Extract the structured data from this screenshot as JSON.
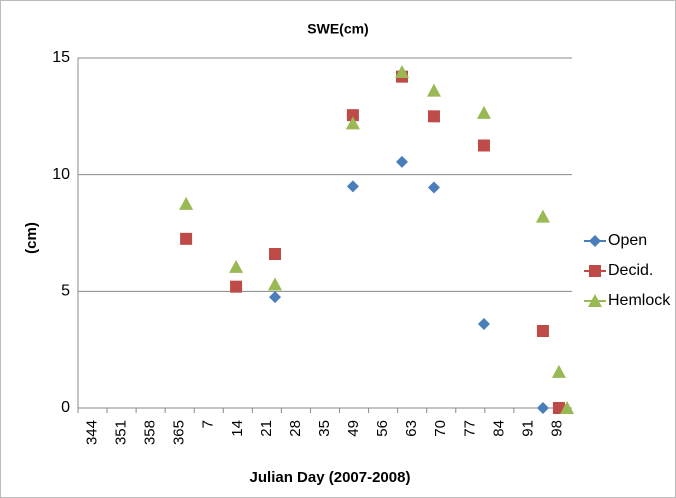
{
  "chart_data": {
    "type": "scatter",
    "title": "SWE(cm)",
    "x_label": "Julian Day (2007-2008)",
    "y_label": "(cm)",
    "categories": [
      "344",
      "351",
      "358",
      "365",
      "7",
      "14",
      "21",
      "28",
      "35",
      "49",
      "56",
      "63",
      "70",
      "77",
      "84",
      "91",
      "98"
    ],
    "ylim": [
      0,
      15
    ],
    "yticks": [
      0,
      5,
      10,
      15
    ],
    "grid": true,
    "legend": "right",
    "series": [
      {
        "name": "Open",
        "color": "#4a7ebb",
        "marker": "diamond",
        "x": [
          6.28,
          8.96,
          10.65,
          11.75,
          13.47,
          15.5
        ],
        "values": [
          4.75,
          9.5,
          10.55,
          9.45,
          3.6,
          0
        ]
      },
      {
        "name": "Decid.",
        "color": "#be4b48",
        "marker": "square",
        "x": [
          3.22,
          4.94,
          6.28,
          8.96,
          10.65,
          11.75,
          13.47,
          15.5,
          16.05
        ],
        "values": [
          7.25,
          5.2,
          6.6,
          12.55,
          14.2,
          12.5,
          11.25,
          3.3,
          0
        ]
      },
      {
        "name": "Hemlock",
        "color": "#98b954",
        "marker": "triangle",
        "x": [
          3.22,
          4.94,
          6.28,
          8.96,
          10.65,
          11.75,
          13.47,
          15.5,
          16.05,
          16.33
        ],
        "values": [
          8.75,
          6.05,
          5.3,
          12.2,
          14.4,
          13.6,
          12.65,
          8.2,
          1.55,
          0
        ]
      }
    ]
  }
}
